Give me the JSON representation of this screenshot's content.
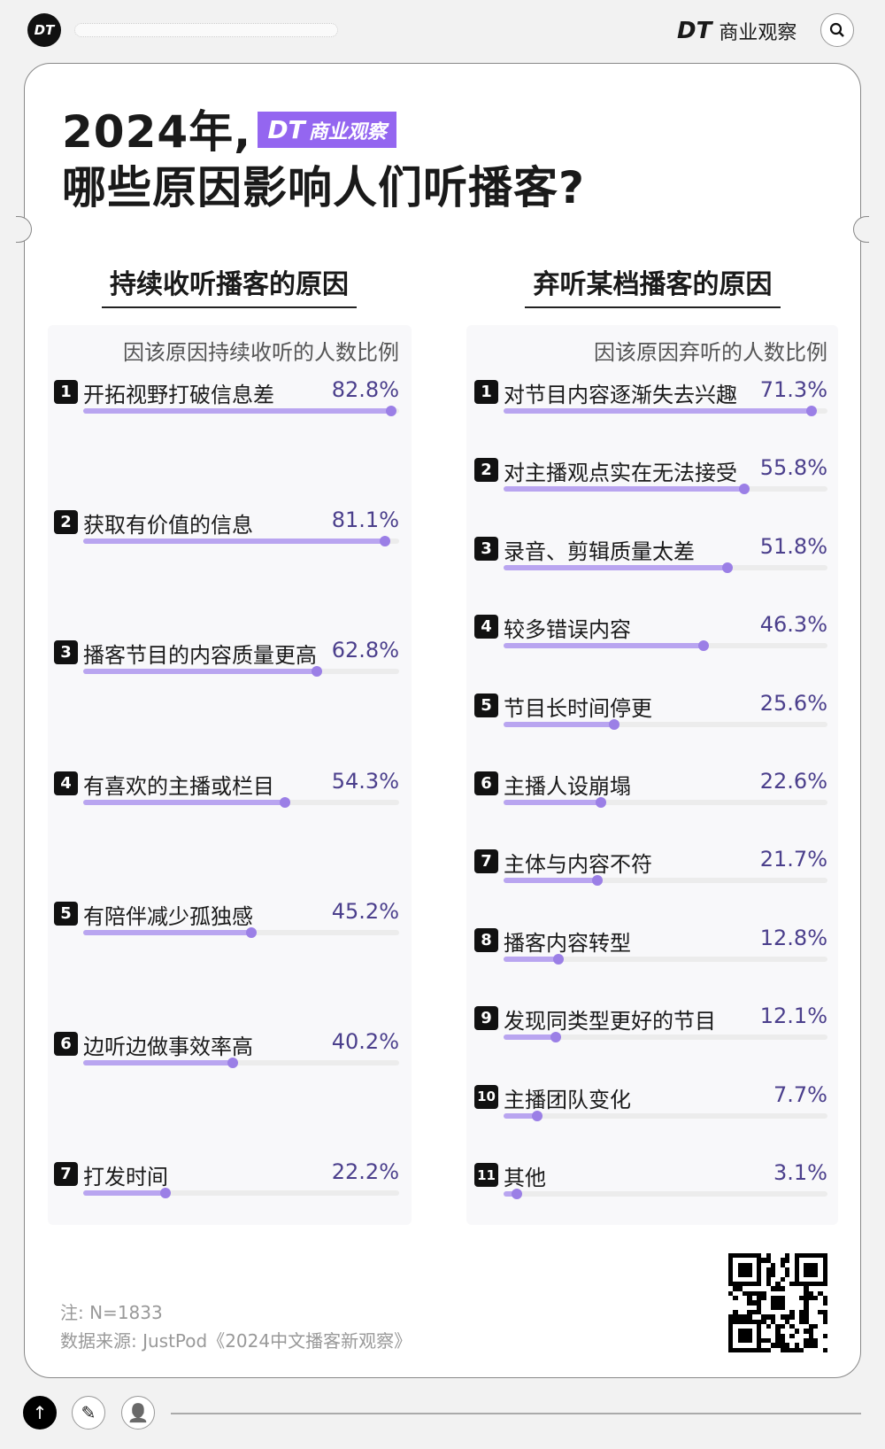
{
  "header": {
    "logo": "DT",
    "brand_mark": "DT",
    "brand_name": "商业观察",
    "search_icon": "search-icon"
  },
  "title": {
    "line1": "2024年,",
    "badge_mark": "DT",
    "badge_text": "商业观察",
    "line2": "哪些原因影响人们听播客?"
  },
  "colors": {
    "badge": "#9466f0",
    "bar": "#b9a5f0",
    "dot": "#9b7fe6",
    "percent": "#4b3f8c"
  },
  "chart_data": [
    {
      "type": "bar",
      "title": "持续收听播客的原因",
      "subtitle": "因该原因持续收听的人数比例",
      "xlim": [
        0,
        85
      ],
      "categories": [
        "开拓视野打破信息差",
        "获取有价值的信息",
        "播客节目的内容质量更高",
        "有喜欢的主播或栏目",
        "有陪伴减少孤独感",
        "边听边做事效率高",
        "打发时间"
      ],
      "values": [
        82.8,
        81.1,
        62.8,
        54.3,
        45.2,
        40.2,
        22.2
      ],
      "labels": [
        "82.8%",
        "81.1%",
        "62.8%",
        "54.3%",
        "45.2%",
        "40.2%",
        "22.2%"
      ]
    },
    {
      "type": "bar",
      "title": "弃听某档播客的原因",
      "subtitle": "因该原因弃听的人数比例",
      "xlim": [
        0,
        75
      ],
      "categories": [
        "对节目内容逐渐失去兴趣",
        "对主播观点实在无法接受",
        "录音、剪辑质量太差",
        "较多错误内容",
        "节目长时间停更",
        "主播人设崩塌",
        "主体与内容不符",
        "播客内容转型",
        "发现同类型更好的节目",
        "主播团队变化",
        "其他"
      ],
      "values": [
        71.3,
        55.8,
        51.8,
        46.3,
        25.6,
        22.6,
        21.7,
        12.8,
        12.1,
        7.7,
        3.1
      ],
      "labels": [
        "71.3%",
        "55.8%",
        "51.8%",
        "46.3%",
        "25.6%",
        "22.6%",
        "21.7%",
        "12.8%",
        "12.1%",
        "7.7%",
        "3.1%"
      ]
    }
  ],
  "footer": {
    "note": "注: N=1833",
    "source": "数据来源: JustPod《2024中文播客新观察》"
  },
  "bottom": {
    "up_icon": "↑",
    "edit_icon": "✎",
    "user_icon": "👤"
  }
}
